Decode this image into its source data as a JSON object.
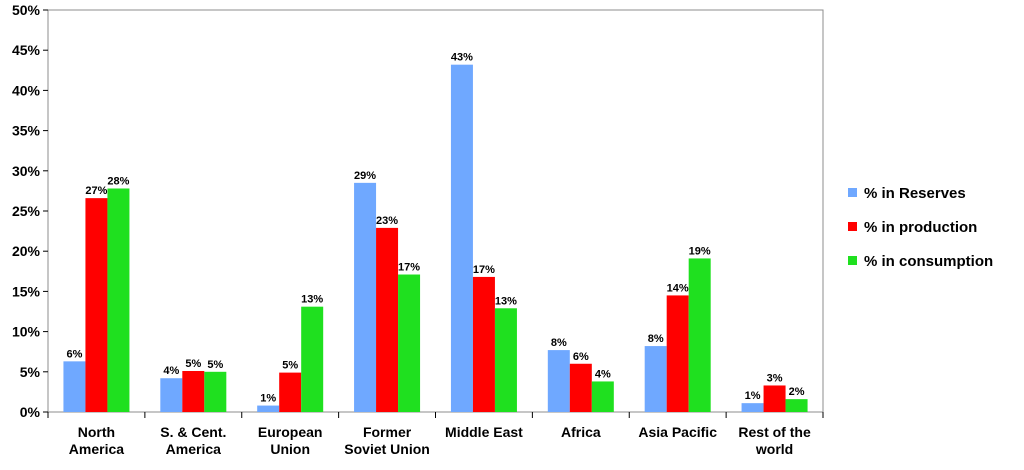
{
  "chart_data": {
    "type": "bar",
    "title": "",
    "xlabel": "",
    "ylabel": "",
    "ylim": [
      0,
      50
    ],
    "y_ticks": [
      "0%",
      "5%",
      "10%",
      "15%",
      "20%",
      "25%",
      "30%",
      "35%",
      "40%",
      "45%",
      "50%"
    ],
    "grid": false,
    "legend_position": "right",
    "categories": [
      [
        "North",
        "America"
      ],
      [
        "S. & Cent.",
        "America"
      ],
      [
        "European",
        "Union"
      ],
      [
        "Former",
        "Soviet Union"
      ],
      [
        "Middle East"
      ],
      [
        "Africa"
      ],
      [
        "Asia Pacific"
      ],
      [
        "Rest of the",
        "world"
      ]
    ],
    "series": [
      {
        "name": "% in Reserves",
        "color": "#6fa8ff",
        "values": [
          6.3,
          4.2,
          0.8,
          28.5,
          43.2,
          7.7,
          8.2,
          1.1
        ],
        "labels": [
          "6%",
          "4%",
          "1%",
          "29%",
          "43%",
          "8%",
          "8%",
          "1%"
        ]
      },
      {
        "name": "% in production",
        "color": "#ff0000",
        "values": [
          26.6,
          5.1,
          4.9,
          22.9,
          16.8,
          6.0,
          14.5,
          3.3
        ],
        "labels": [
          "27%",
          "5%",
          "5%",
          "23%",
          "17%",
          "6%",
          "14%",
          "3%"
        ]
      },
      {
        "name": "% in consumption",
        "color": "#1fe01f",
        "values": [
          27.8,
          5.0,
          13.1,
          17.1,
          12.9,
          3.8,
          19.1,
          1.6
        ],
        "labels": [
          "28%",
          "5%",
          "13%",
          "17%",
          "13%",
          "4%",
          "19%",
          "2%"
        ]
      }
    ]
  }
}
